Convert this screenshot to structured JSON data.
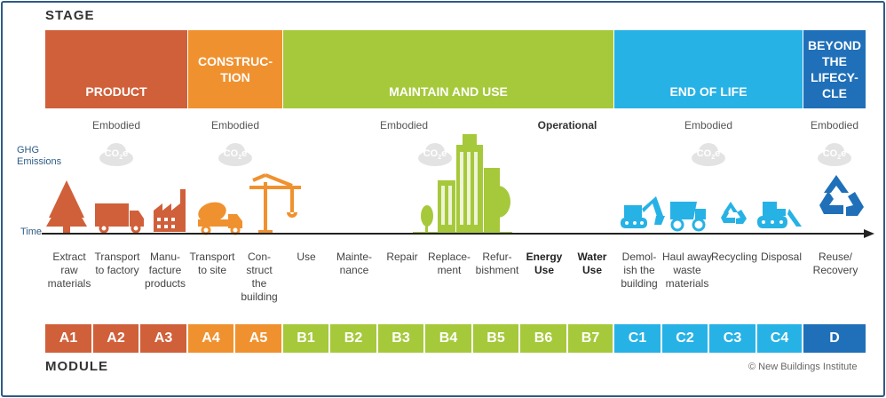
{
  "header": {
    "stage_label": "STAGE",
    "module_label": "MODULE"
  },
  "stages": [
    {
      "line1": "PRODUCT",
      "line2": "",
      "line3": "",
      "line4": "",
      "color": "#d0603a"
    },
    {
      "line1": "CONSTRUC-",
      "line2": "TION",
      "line3": "",
      "line4": "",
      "color": "#f0912f"
    },
    {
      "line1": "MAINTAIN AND USE",
      "line2": "",
      "line3": "",
      "line4": "",
      "color": "#a6c93b"
    },
    {
      "line1": "END OF LIFE",
      "line2": "",
      "line3": "",
      "line4": "",
      "color": "#27b2e6"
    },
    {
      "line1": "BEYOND",
      "line2": "THE",
      "line3": "LIFECY-",
      "line4": "CLE",
      "color": "#1f70b8"
    }
  ],
  "emissions": {
    "ghg_line1": "GHG",
    "ghg_line2": "Emissions",
    "time_label": "Time",
    "labels": [
      "Embodied",
      "Embodied",
      "Embodied",
      "Operational",
      "Embodied",
      "Embodied"
    ],
    "cloud_text": "CO",
    "cloud_sub": "2",
    "cloud_suffix": "e"
  },
  "steps": [
    [
      "Extract",
      "raw",
      "materials",
      ""
    ],
    [
      "Transport",
      "to factory",
      "",
      ""
    ],
    [
      "Manu-",
      "facture",
      "products",
      ""
    ],
    [
      "Transport",
      "to site",
      "",
      ""
    ],
    [
      "Con-",
      "struct",
      "the",
      "building"
    ],
    [
      "Use",
      "",
      "",
      ""
    ],
    [
      "Mainte-",
      "nance",
      "",
      ""
    ],
    [
      "Repair",
      "",
      "",
      ""
    ],
    [
      "Replace-",
      "ment",
      "",
      ""
    ],
    [
      "Refur-",
      "bishment",
      "",
      ""
    ],
    [
      "Energy",
      "Use",
      "",
      ""
    ],
    [
      "Water",
      "Use",
      "",
      ""
    ],
    [
      "Demol-",
      "ish the",
      "building",
      ""
    ],
    [
      "Haul away",
      "waste",
      "materials",
      ""
    ],
    [
      "Recycling",
      "",
      "",
      ""
    ],
    [
      "Disposal",
      "",
      "",
      ""
    ],
    [
      "Reuse/",
      "Recovery",
      "",
      ""
    ]
  ],
  "modules": [
    "A1",
    "A2",
    "A3",
    "A4",
    "A5",
    "B1",
    "B2",
    "B3",
    "B4",
    "B5",
    "B6",
    "B7",
    "C1",
    "C2",
    "C3",
    "C4",
    "D"
  ],
  "colors": {
    "product": "#d0603a",
    "construction": "#f0912f",
    "use": "#a6c93b",
    "end_of_life": "#27b2e6",
    "beyond": "#1f70b8",
    "frame": "#2d5b86"
  },
  "credit": "© New Buildings Institute"
}
